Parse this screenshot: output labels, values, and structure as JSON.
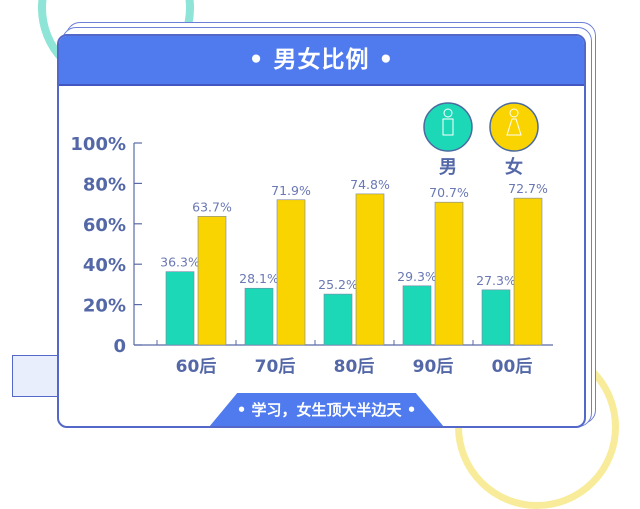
{
  "header": {
    "title": "• 男女比例 •"
  },
  "footer": {
    "caption": "• 学习，女生顶大半边天 •"
  },
  "legend": [
    {
      "label": "男",
      "color": "#1dd8b6",
      "icon": "male-person-icon"
    },
    {
      "label": "女",
      "color": "#fad400",
      "icon": "female-person-icon"
    }
  ],
  "chart_data": {
    "type": "bar",
    "categories": [
      "60后",
      "70后",
      "80后",
      "90后",
      "00后"
    ],
    "series": [
      {
        "name": "男",
        "color": "#1dd8b6",
        "values": [
          36.3,
          28.1,
          25.2,
          29.3,
          27.3
        ],
        "labels": [
          "36.3%",
          "28.1%",
          "25.2%",
          "29.3%",
          "27.3%"
        ]
      },
      {
        "name": "女",
        "color": "#fad400",
        "values": [
          63.7,
          71.9,
          74.8,
          70.7,
          72.7
        ],
        "labels": [
          "63.7%",
          "71.9%",
          "74.8%",
          "70.7%",
          "72.7%"
        ]
      }
    ],
    "yticks": [
      "0",
      "20%",
      "40%",
      "60%",
      "80%",
      "100%"
    ],
    "ylim": [
      0,
      100
    ],
    "grid": false,
    "legend_position": "top-right"
  }
}
